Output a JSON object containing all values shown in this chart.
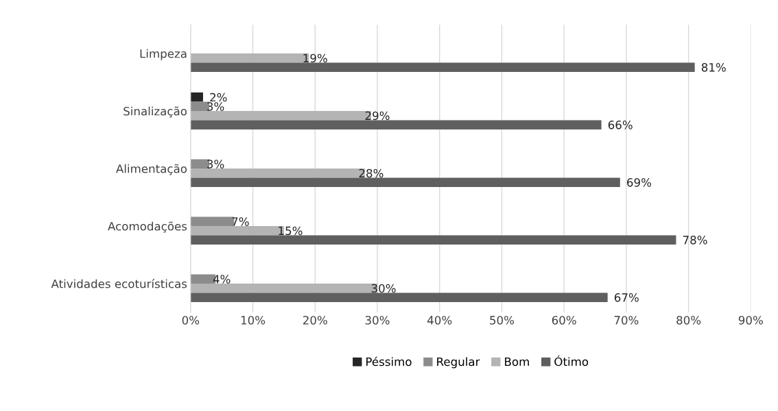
{
  "chart_data": {
    "type": "bar",
    "orientation": "horizontal",
    "categories": [
      "Limpeza",
      "Sinalização",
      "Alimentação",
      "Acomodações",
      "Atividades ecoturísticas"
    ],
    "series": [
      {
        "name": "Péssimo",
        "color": "#262626",
        "values": [
          null,
          2,
          null,
          null,
          null
        ],
        "value_labels": [
          null,
          "2%",
          null,
          null,
          null
        ]
      },
      {
        "name": "Regular",
        "color": "#8c8c8c",
        "values": [
          null,
          3,
          3,
          7,
          4
        ],
        "value_labels": [
          null,
          "3%",
          "3%",
          "7%",
          "4%"
        ]
      },
      {
        "name": "Bom",
        "color": "#b4b4b4",
        "values": [
          19,
          29,
          28,
          15,
          30
        ],
        "value_labels": [
          "19%",
          "29%",
          "28%",
          "15%",
          "30%"
        ]
      },
      {
        "name": "Ótimo",
        "color": "#5f5f5f",
        "values": [
          81,
          66,
          69,
          78,
          67
        ],
        "value_labels": [
          "81%",
          "66%",
          "69%",
          "78%",
          "67%"
        ]
      }
    ],
    "xlim": [
      0,
      90
    ],
    "xticks": [
      {
        "value": 0,
        "label": "0%"
      },
      {
        "value": 10,
        "label": "10%"
      },
      {
        "value": 20,
        "label": "20%"
      },
      {
        "value": 30,
        "label": "30%"
      },
      {
        "value": 40,
        "label": "40%"
      },
      {
        "value": 50,
        "label": "50%"
      },
      {
        "value": 60,
        "label": "60%"
      },
      {
        "value": 70,
        "label": "70%"
      },
      {
        "value": 80,
        "label": "80%"
      },
      {
        "value": 90,
        "label": "90%"
      }
    ],
    "grid": "x",
    "legend": "bottom"
  }
}
